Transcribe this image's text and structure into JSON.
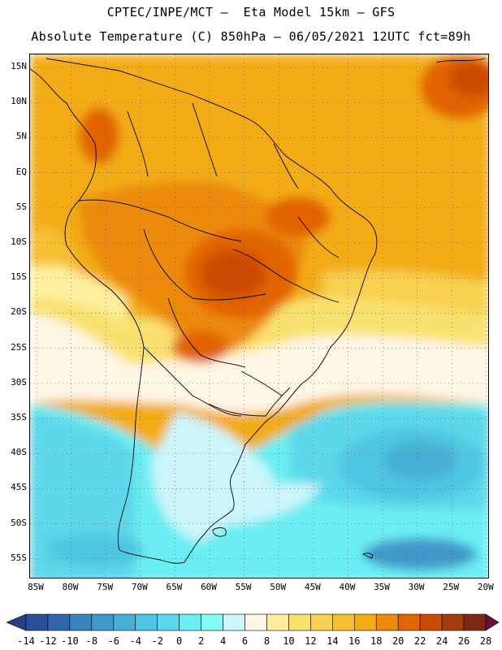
{
  "title_line1": "CPTEC/INPE/MCT –  Eta Model 15km – GFS",
  "title_line2": "Absolute Temperature (C) 850hPa – 06/05/2021 12UTC fct=89h",
  "y_axis_labels": [
    "15N",
    "10N",
    "5N",
    "EQ",
    "5S",
    "10S",
    "15S",
    "20S",
    "25S",
    "30S",
    "35S",
    "40S",
    "45S",
    "50S",
    "55S"
  ],
  "x_axis_labels": [
    "85W",
    "80W",
    "75W",
    "70W",
    "65W",
    "60W",
    "55W",
    "50W",
    "45W",
    "40W",
    "35W",
    "30W",
    "25W",
    "20W"
  ],
  "colorbar_labels": [
    "-14",
    "-12",
    "-10",
    "-8",
    "-6",
    "-4",
    "-2",
    "0",
    "2",
    "4",
    "6",
    "8",
    "10",
    "12",
    "14",
    "16",
    "18",
    "20",
    "22",
    "24",
    "26",
    "28"
  ],
  "colors": {
    "below_min": "#283e8a",
    "bins": [
      "#2a4f9a",
      "#2f66ad",
      "#3a84bf",
      "#4099c9",
      "#47b0d6",
      "#4fc6e1",
      "#5bd8ea",
      "#6beef3",
      "#83fbf8",
      "#ccf6fb",
      "#fff6e6",
      "#ffef9e",
      "#f9e16f",
      "#f7d150",
      "#f6c033",
      "#f3ac14",
      "#eb8a0b",
      "#e26405",
      "#cc4b04",
      "#a53c0e",
      "#7c2814"
    ],
    "above_max": "#6a0f3a",
    "land_outline": "#000000"
  }
}
